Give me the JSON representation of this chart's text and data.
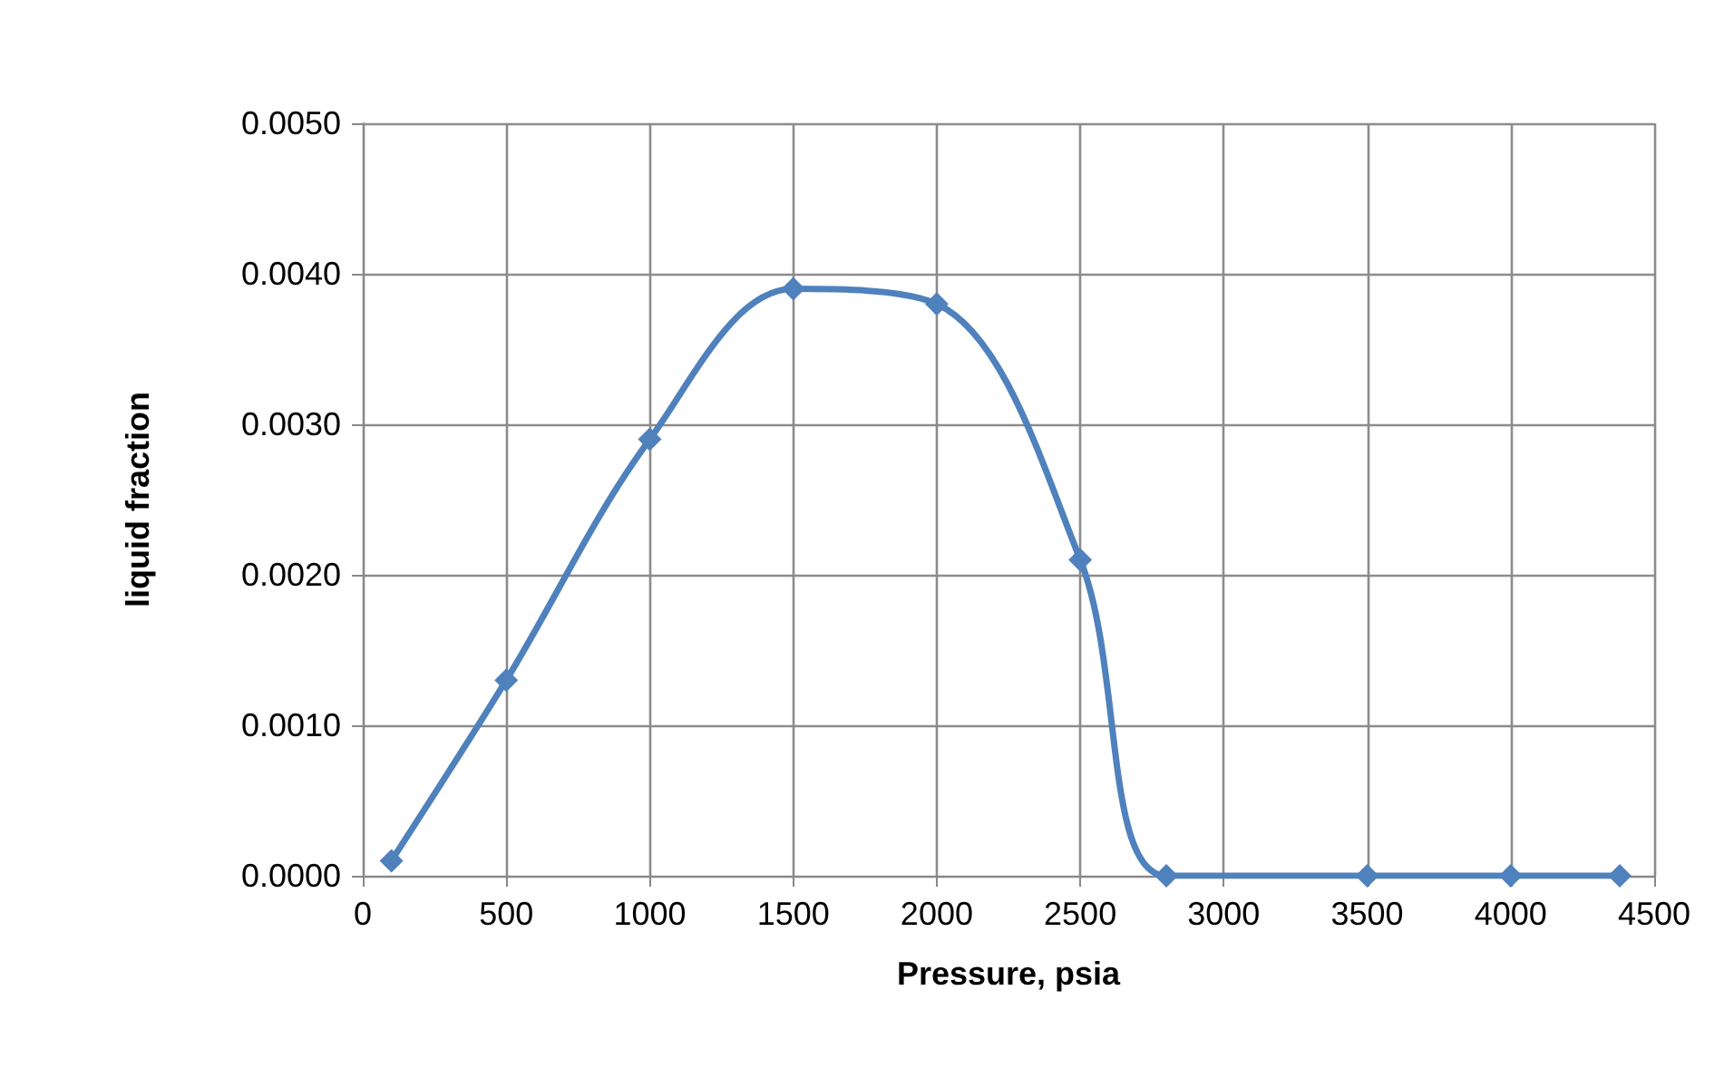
{
  "chart_data": {
    "type": "line",
    "xlabel": "Pressure, psia",
    "ylabel": "liquid fraction",
    "x": [
      100,
      500,
      1000,
      1500,
      2000,
      2500,
      2800,
      3500,
      4000,
      4380
    ],
    "series": [
      {
        "color": "#4f81bd",
        "values": [
          0.0001,
          0.0013,
          0.0029,
          0.0039,
          0.0038,
          0.0021,
          0.0,
          0.0,
          0.0,
          0.0
        ]
      }
    ],
    "xlim": [
      0,
      4500
    ],
    "xticks": [
      0,
      500,
      1000,
      1500,
      2000,
      2500,
      3000,
      3500,
      4000,
      4500
    ],
    "ylim": [
      0,
      0.005
    ],
    "yticks": [
      {
        "value": 0,
        "label": "0.0000"
      },
      {
        "value": 0.001,
        "label": "0.0010"
      },
      {
        "value": 0.002,
        "label": "0.0020"
      },
      {
        "value": 0.003,
        "label": "0.0030"
      },
      {
        "value": 0.004,
        "label": "0.0040"
      },
      {
        "value": 0.005,
        "label": "0.0050"
      }
    ],
    "grid": true,
    "marker": "diamond"
  }
}
